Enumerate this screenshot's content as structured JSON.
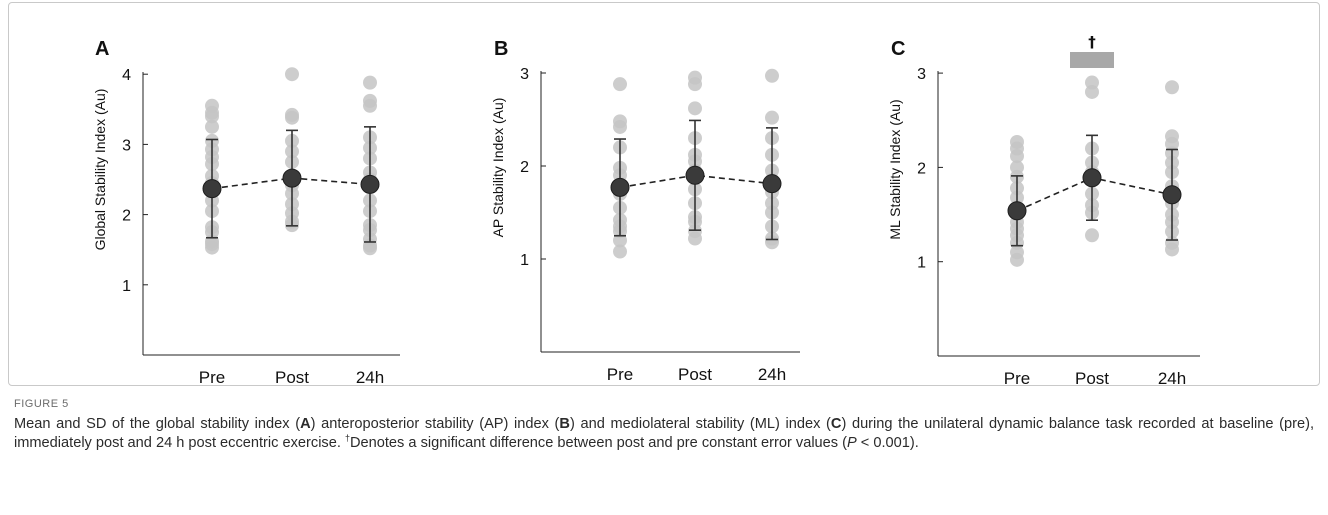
{
  "figure": {
    "label": "FIGURE 5",
    "caption_parts": [
      {
        "t": "Mean and SD of the global stability index (",
        "s": ""
      },
      {
        "t": "A",
        "s": ""
      },
      {
        "t": ") anteroposterior stability (AP) index (",
        "s": ""
      },
      {
        "t": "B",
        "s": ""
      },
      {
        "t": ") and mediolateral stability (ML) index (",
        "s": ""
      },
      {
        "t": "C",
        "s": ""
      },
      {
        "t": ") during the unilateral dynamic balance task recorded at baseline (pre), immediately post and 24 h post eccentric exercise. ",
        "s": ""
      },
      {
        "t": "†",
        "s": "sup"
      },
      {
        "t": "Denotes a significant difference between post and pre constant error values (",
        "s": ""
      },
      {
        "t": "P",
        "s": "i"
      },
      {
        "t": " < 0.001).",
        "s": ""
      }
    ]
  },
  "colors": {
    "individual_points": "#c4c4c4",
    "mean_marker": "#3a3a3a",
    "sd_bar": "#333333",
    "significance_bar": "#a8a8a8"
  },
  "chart_data": [
    {
      "panel": "A",
      "type": "scatter",
      "ylabel": "Global Stability Index (Au)",
      "categories": [
        "Pre",
        "Post",
        "24h"
      ],
      "ylim": [
        0,
        4
      ],
      "yticks": [
        1,
        2,
        3,
        4
      ],
      "mean": [
        2.37,
        2.52,
        2.43
      ],
      "sd": [
        0.7,
        0.68,
        0.82
      ],
      "individual": [
        [
          1.53,
          1.58,
          1.62,
          1.75,
          1.82,
          2.05,
          2.2,
          2.35,
          2.45,
          2.55,
          2.72,
          2.82,
          2.93,
          3.05,
          3.25,
          3.4,
          3.45,
          3.55
        ],
        [
          1.85,
          1.9,
          2.02,
          2.15,
          2.3,
          2.42,
          2.55,
          2.75,
          2.9,
          3.05,
          3.38,
          3.42,
          4.0
        ],
        [
          1.52,
          1.56,
          1.65,
          1.78,
          1.85,
          2.05,
          2.2,
          2.5,
          2.6,
          2.8,
          2.95,
          3.1,
          3.55,
          3.62,
          3.88
        ]
      ],
      "significance": null
    },
    {
      "panel": "B",
      "type": "scatter",
      "ylabel": "AP Stability Index (Au)",
      "categories": [
        "Pre",
        "Post",
        "24h"
      ],
      "ylim": [
        0,
        3
      ],
      "yticks": [
        1,
        2,
        3
      ],
      "mean": [
        1.77,
        1.9,
        1.81
      ],
      "sd": [
        0.52,
        0.59,
        0.6
      ],
      "individual": [
        [
          1.08,
          1.2,
          1.3,
          1.35,
          1.42,
          1.55,
          1.7,
          1.8,
          1.9,
          1.98,
          2.2,
          2.42,
          2.48,
          2.88
        ],
        [
          1.22,
          1.3,
          1.4,
          1.45,
          1.6,
          1.75,
          1.95,
          2.05,
          2.12,
          2.3,
          2.62,
          2.88,
          2.95
        ],
        [
          1.18,
          1.22,
          1.35,
          1.5,
          1.6,
          1.72,
          1.85,
          1.95,
          2.12,
          2.3,
          2.52,
          2.97
        ]
      ],
      "significance": null
    },
    {
      "panel": "C",
      "type": "scatter",
      "ylabel": "ML Stability Index (Au)",
      "categories": [
        "Pre",
        "Post",
        "24h"
      ],
      "ylim": [
        0,
        3
      ],
      "yticks": [
        1,
        2,
        3
      ],
      "mean": [
        1.54,
        1.89,
        1.71
      ],
      "sd": [
        0.37,
        0.45,
        0.48
      ],
      "individual": [
        [
          1.02,
          1.1,
          1.2,
          1.28,
          1.35,
          1.42,
          1.5,
          1.58,
          1.68,
          1.78,
          1.9,
          2.0,
          2.12,
          2.2,
          2.27
        ],
        [
          1.28,
          1.52,
          1.6,
          1.72,
          1.95,
          2.05,
          2.2,
          2.8,
          2.9
        ],
        [
          1.13,
          1.2,
          1.32,
          1.42,
          1.5,
          1.62,
          1.8,
          1.95,
          2.05,
          2.15,
          2.25,
          2.33,
          2.85
        ]
      ],
      "significance": {
        "category": "Post",
        "symbol": "†"
      }
    }
  ]
}
